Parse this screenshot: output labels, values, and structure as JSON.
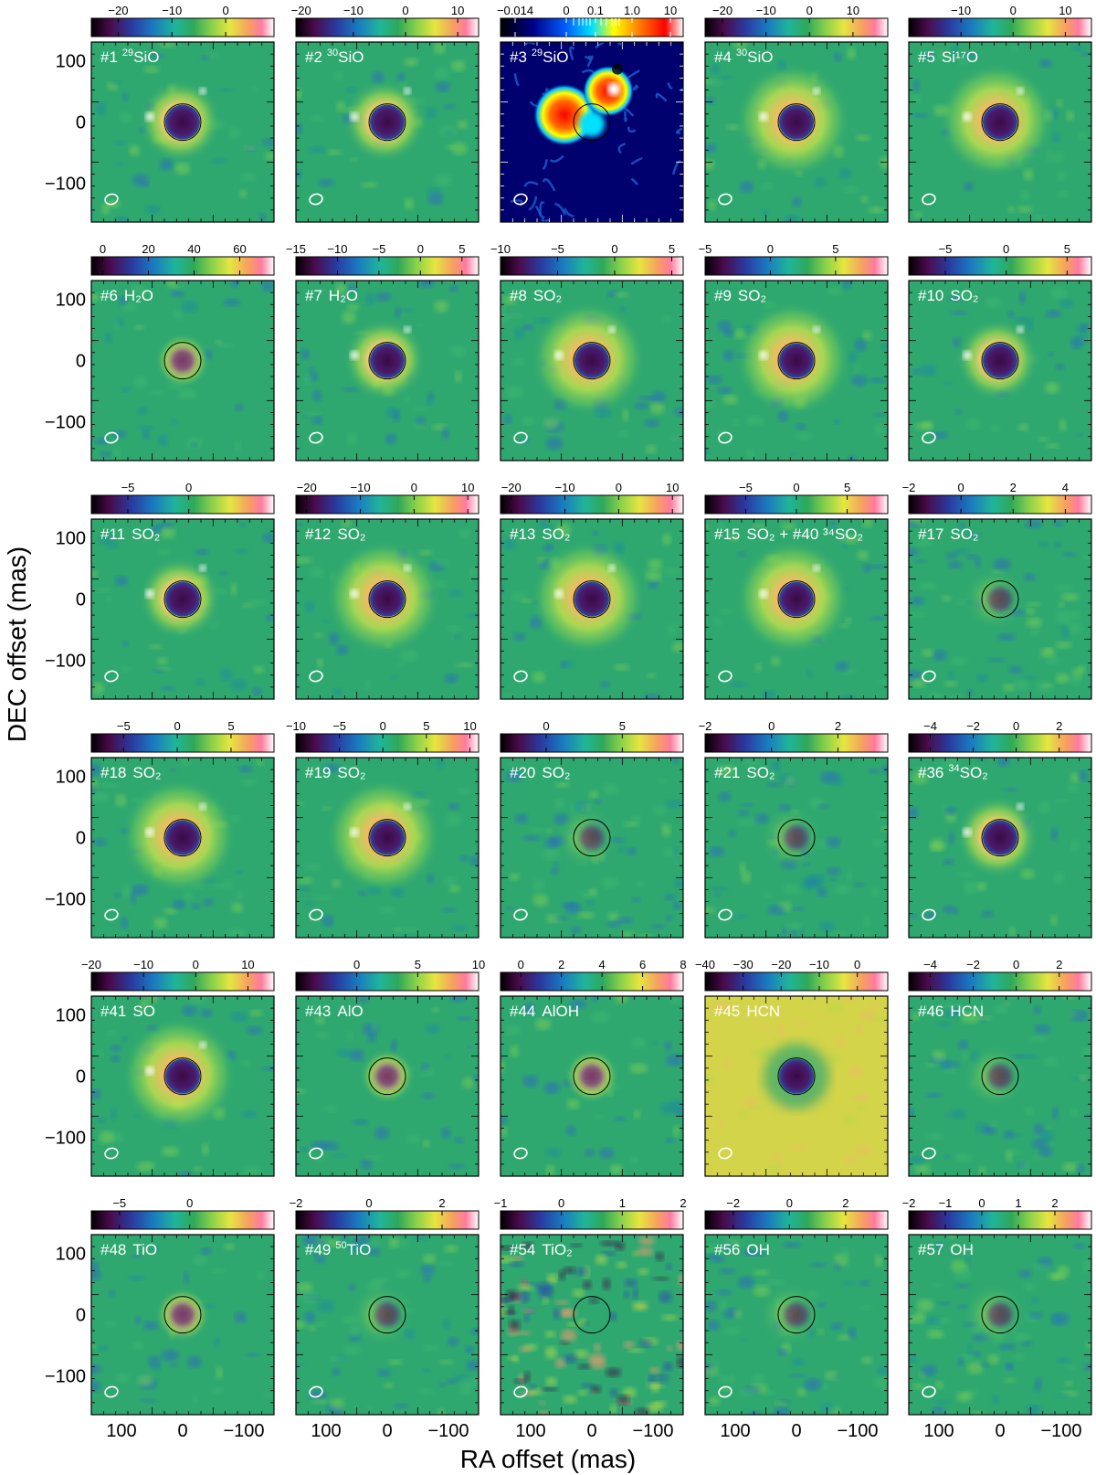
{
  "figure": {
    "xlabel": "RA offset (mas)",
    "ylabel": "DEC offset (mas)",
    "axis_ticks": [
      "100",
      "0",
      "−100"
    ],
    "colors": {
      "frame": "#000000",
      "stellar_disk": "#000000",
      "beam": "#ffffff",
      "label_text": "#ffffff"
    }
  },
  "panels": [
    {
      "num": "#1",
      "iso": "29",
      "species": "SiO",
      "cmap": "rainbow",
      "ring": "ring",
      "cbar_ticks": [
        "−20",
        "−10",
        "0"
      ],
      "cbar_vals": [
        -20,
        -10,
        0
      ],
      "cbar_range": [
        -25,
        9
      ]
    },
    {
      "num": "#2",
      "iso": "30",
      "species": "SiO",
      "cmap": "rainbow",
      "ring": "ring",
      "cbar_ticks": [
        "−20",
        "−10",
        "0",
        "10"
      ],
      "cbar_vals": [
        -20,
        -10,
        0,
        10
      ],
      "cbar_range": [
        -21,
        14
      ]
    },
    {
      "num": "#3",
      "iso": "29",
      "species": "SiO",
      "cmap": "jet",
      "ring": "blob",
      "cbar_ticks": [
        "−0.014",
        "0",
        "0.1",
        "1.0",
        "10"
      ],
      "cbar_vals": [
        -0.014,
        0,
        0.1,
        1.0,
        10
      ],
      "cbar_range": [
        -0.014,
        10
      ]
    },
    {
      "num": "#4",
      "iso": "30",
      "species": "SiO",
      "cmap": "rainbow",
      "ring": "wide",
      "cbar_ticks": [
        "−20",
        "−10",
        "0",
        "10"
      ],
      "cbar_vals": [
        -20,
        -10,
        0,
        10
      ],
      "cbar_range": [
        -24,
        18
      ]
    },
    {
      "num": "#5",
      "iso": "",
      "species": "Si¹⁷O",
      "cmap": "rainbow",
      "ring": "wide",
      "cbar_ticks": [
        "−10",
        "0",
        "10"
      ],
      "cbar_vals": [
        -10,
        0,
        10
      ],
      "cbar_range": [
        -20,
        15
      ]
    },
    {
      "num": "#6",
      "iso": "",
      "species": "H₂O",
      "cmap": "rainbow",
      "ring": "compact",
      "cbar_ticks": [
        "0",
        "20",
        "40",
        "60"
      ],
      "cbar_vals": [
        0,
        20,
        40,
        60
      ],
      "cbar_range": [
        -5,
        75
      ]
    },
    {
      "num": "#7",
      "iso": "",
      "species": "H₂O",
      "cmap": "rainbow",
      "ring": "ring",
      "cbar_ticks": [
        "−15",
        "−10",
        "−5",
        "0",
        "5"
      ],
      "cbar_vals": [
        -15,
        -10,
        -5,
        0,
        5
      ],
      "cbar_range": [
        -15,
        7
      ]
    },
    {
      "num": "#8",
      "iso": "",
      "species": "SO₂",
      "cmap": "rainbow",
      "ring": "wide",
      "cbar_ticks": [
        "−10",
        "−5",
        "0",
        "5"
      ],
      "cbar_vals": [
        -10,
        -5,
        0,
        5
      ],
      "cbar_range": [
        -10,
        6
      ]
    },
    {
      "num": "#9",
      "iso": "",
      "species": "SO₂",
      "cmap": "rainbow",
      "ring": "wide",
      "cbar_ticks": [
        "−5",
        "0",
        "5"
      ],
      "cbar_vals": [
        -5,
        0,
        5
      ],
      "cbar_range": [
        -5,
        9
      ]
    },
    {
      "num": "#10",
      "iso": "",
      "species": "SO₂",
      "cmap": "rainbow",
      "ring": "ring",
      "cbar_ticks": [
        "−5",
        "0",
        "5"
      ],
      "cbar_vals": [
        -5,
        0,
        5
      ],
      "cbar_range": [
        -8,
        7
      ]
    },
    {
      "num": "#11",
      "iso": "",
      "species": "SO₂",
      "cmap": "rainbow",
      "ring": "ring",
      "cbar_ticks": [
        "−5",
        "0"
      ],
      "cbar_vals": [
        -5,
        0
      ],
      "cbar_range": [
        -8,
        7
      ]
    },
    {
      "num": "#12",
      "iso": "",
      "species": "SO₂",
      "cmap": "rainbow",
      "ring": "wide",
      "cbar_ticks": [
        "−20",
        "−10",
        "0",
        "10"
      ],
      "cbar_vals": [
        -20,
        -10,
        0,
        10
      ],
      "cbar_range": [
        -22,
        12
      ]
    },
    {
      "num": "#13",
      "iso": "",
      "species": "SO₂",
      "cmap": "rainbow",
      "ring": "wide",
      "cbar_ticks": [
        "−20",
        "−10",
        "0",
        "10"
      ],
      "cbar_vals": [
        -20,
        -10,
        0,
        10
      ],
      "cbar_range": [
        -22,
        12
      ]
    },
    {
      "num": "#15",
      "iso": "",
      "species": "SO₂ + #40 ³⁴SO₂",
      "cmap": "rainbow",
      "ring": "wide",
      "cbar_ticks": [
        "−5",
        "0",
        "5"
      ],
      "cbar_vals": [
        -5,
        0,
        5
      ],
      "cbar_range": [
        -9,
        9
      ]
    },
    {
      "num": "#17",
      "iso": "",
      "species": "SO₂",
      "cmap": "rainbow",
      "ring": "faint",
      "cbar_ticks": [
        "−2",
        "0",
        "2",
        "4"
      ],
      "cbar_vals": [
        -2,
        0,
        2,
        4
      ],
      "cbar_range": [
        -2,
        5
      ]
    },
    {
      "num": "#18",
      "iso": "",
      "species": "SO₂",
      "cmap": "rainbow",
      "ring": "wide",
      "cbar_ticks": [
        "−5",
        "0",
        "5"
      ],
      "cbar_vals": [
        -5,
        0,
        5
      ],
      "cbar_range": [
        -8,
        9
      ]
    },
    {
      "num": "#19",
      "iso": "",
      "species": "SO₂",
      "cmap": "rainbow",
      "ring": "wide",
      "cbar_ticks": [
        "−10",
        "−5",
        "0",
        "5",
        "10"
      ],
      "cbar_vals": [
        -10,
        -5,
        0,
        5,
        10
      ],
      "cbar_range": [
        -10,
        11
      ]
    },
    {
      "num": "#20",
      "iso": "",
      "species": "SO₂",
      "cmap": "rainbow",
      "ring": "faint",
      "cbar_ticks": [
        "0",
        "5"
      ],
      "cbar_vals": [
        0,
        5
      ],
      "cbar_range": [
        -3,
        9
      ]
    },
    {
      "num": "#21",
      "iso": "",
      "species": "SO₂",
      "cmap": "rainbow",
      "ring": "faint",
      "cbar_ticks": [
        "−2",
        "0",
        "2"
      ],
      "cbar_vals": [
        -2,
        0,
        2
      ],
      "cbar_range": [
        -2,
        3.5
      ]
    },
    {
      "num": "#36",
      "iso": "34",
      "species": "SO₂",
      "cmap": "rainbow",
      "ring": "ring",
      "cbar_ticks": [
        "−4",
        "−2",
        "0",
        "2"
      ],
      "cbar_vals": [
        -4,
        -2,
        0,
        2
      ],
      "cbar_range": [
        -5,
        3.5
      ]
    },
    {
      "num": "#41",
      "iso": "",
      "species": "SO",
      "cmap": "rainbow",
      "ring": "wide",
      "cbar_ticks": [
        "−20",
        "−10",
        "0",
        "10"
      ],
      "cbar_vals": [
        -20,
        -10,
        0,
        10
      ],
      "cbar_range": [
        -20,
        15
      ]
    },
    {
      "num": "#43",
      "iso": "",
      "species": "AlO",
      "cmap": "rainbow",
      "ring": "compact",
      "cbar_ticks": [
        "0",
        "5",
        "10"
      ],
      "cbar_vals": [
        0,
        5,
        10
      ],
      "cbar_range": [
        -5,
        10
      ]
    },
    {
      "num": "#44",
      "iso": "",
      "species": "AlOH",
      "cmap": "rainbow",
      "ring": "compact",
      "cbar_ticks": [
        "0",
        "2",
        "4",
        "6",
        "8"
      ],
      "cbar_vals": [
        0,
        2,
        4,
        6,
        8
      ],
      "cbar_range": [
        -1,
        8
      ]
    },
    {
      "num": "#45",
      "iso": "",
      "species": "HCN",
      "cmap": "rainbow",
      "ring": "flat",
      "cbar_ticks": [
        "−40",
        "−30",
        "−20",
        "−10",
        "0"
      ],
      "cbar_vals": [
        -40,
        -30,
        -20,
        -10,
        0
      ],
      "cbar_range": [
        -40,
        8
      ]
    },
    {
      "num": "#46",
      "iso": "",
      "species": "HCN",
      "cmap": "rainbow",
      "ring": "faint",
      "cbar_ticks": [
        "−4",
        "−2",
        "0",
        "2"
      ],
      "cbar_vals": [
        -4,
        -2,
        0,
        2
      ],
      "cbar_range": [
        -5,
        3.5
      ]
    },
    {
      "num": "#48",
      "iso": "",
      "species": "TiO",
      "cmap": "rainbow",
      "ring": "compact",
      "cbar_ticks": [
        "−5",
        "0"
      ],
      "cbar_vals": [
        -5,
        0
      ],
      "cbar_range": [
        -7,
        6
      ]
    },
    {
      "num": "#49",
      "iso": "50",
      "species": "TiO",
      "cmap": "rainbow",
      "ring": "faint",
      "cbar_ticks": [
        "−2",
        "0",
        "2"
      ],
      "cbar_vals": [
        -2,
        0,
        2
      ],
      "cbar_range": [
        -2,
        3
      ]
    },
    {
      "num": "#54",
      "iso": "",
      "species": "TiO₂",
      "cmap": "rainbow",
      "ring": "noise",
      "cbar_ticks": [
        "−1",
        "0",
        "1",
        "2"
      ],
      "cbar_vals": [
        -1,
        0,
        1,
        2
      ],
      "cbar_range": [
        -1,
        2
      ]
    },
    {
      "num": "#56",
      "iso": "",
      "species": "OH",
      "cmap": "rainbow",
      "ring": "faint",
      "cbar_ticks": [
        "−2",
        "0",
        "2"
      ],
      "cbar_vals": [
        -2,
        0,
        2
      ],
      "cbar_range": [
        -3,
        3.5
      ]
    },
    {
      "num": "#57",
      "iso": "",
      "species": "OH",
      "cmap": "rainbow",
      "ring": "faint",
      "cbar_ticks": [
        "−2",
        "−1",
        "0",
        "1",
        "2"
      ],
      "cbar_vals": [
        -2,
        -1,
        0,
        1,
        2
      ],
      "cbar_range": [
        -2,
        3
      ]
    }
  ]
}
